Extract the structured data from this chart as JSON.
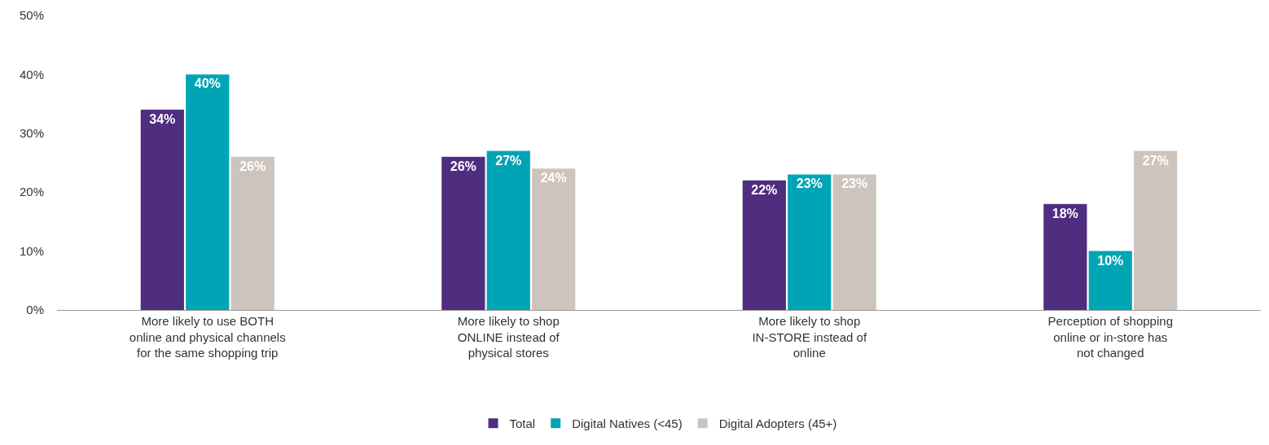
{
  "chart_data": {
    "type": "bar",
    "categories": [
      "More likely to use BOTH\nonline and physical channels\nfor the same shopping trip",
      "More likely to shop\nONLINE instead of\nphysical stores",
      "More likely to shop\nIN-STORE instead of\nonline",
      "Perception of shopping\nonline or in-store has\nnot changed"
    ],
    "series": [
      {
        "name": "Total",
        "color": "#4f2d7f",
        "values": [
          34,
          26,
          22,
          18
        ],
        "value_labels": [
          "34%",
          "26%",
          "22%",
          "18%"
        ]
      },
      {
        "name": "Digital Natives (<45)",
        "color": "#00a5b5",
        "values": [
          40,
          27,
          23,
          10
        ],
        "value_labels": [
          "40%",
          "27%",
          "23%",
          "10%"
        ]
      },
      {
        "name": "Digital Adopters (45+)",
        "color": "#cdc4bd",
        "values": [
          26,
          24,
          23,
          27
        ],
        "value_labels": [
          "26%",
          "24%",
          "23%",
          "27%"
        ]
      }
    ],
    "ylim": [
      0,
      50
    ],
    "yticks": [
      {
        "value": 0,
        "label": "0%"
      },
      {
        "value": 10,
        "label": "10%"
      },
      {
        "value": 20,
        "label": "20%"
      },
      {
        "value": 30,
        "label": "30%"
      },
      {
        "value": 40,
        "label": "40%"
      },
      {
        "value": 50,
        "label": "50%"
      }
    ],
    "legend": "bottom"
  }
}
